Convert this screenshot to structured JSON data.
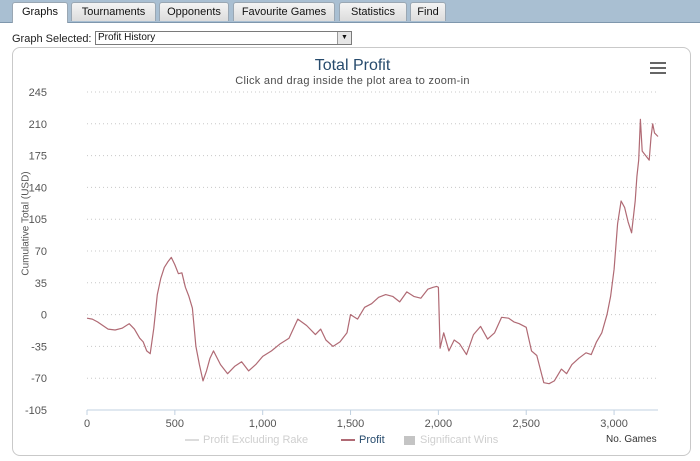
{
  "tabs": [
    {
      "label": "Graphs",
      "active": true
    },
    {
      "label": "Tournaments",
      "active": false
    },
    {
      "label": "Opponents",
      "active": false
    },
    {
      "label": "Favourite Games",
      "active": false
    },
    {
      "label": "Statistics",
      "active": false
    },
    {
      "label": "Find",
      "active": false
    }
  ],
  "graph_select": {
    "label": "Graph Selected:",
    "value": "Profit History",
    "arrow_icon": "triangle-down-icon"
  },
  "chart": {
    "menu_icon": "hamburger-menu-icon",
    "colors": {
      "title": "#274b6d",
      "profit": "#b06a74",
      "profit_excluding_rake": "#d9d9d9",
      "significant_wins": "#bbbbbb",
      "grid": "#c8c8c8"
    }
  },
  "chart_data": {
    "type": "line",
    "title": "Total Profit",
    "subtitle": "Click and drag inside the plot area to zoom-in",
    "xlabel": "No. Games",
    "ylabel": "Cumulative Total (USD)",
    "xlim": [
      0,
      3250
    ],
    "ylim": [
      -105,
      245
    ],
    "x_ticks": [
      0,
      500,
      1000,
      1500,
      2000,
      2500,
      3000
    ],
    "x_tick_labels": [
      "0",
      "500",
      "1,000",
      "1,500",
      "2,000",
      "2,500",
      "3,000"
    ],
    "y_ticks": [
      245,
      210,
      175,
      140,
      105,
      70,
      35,
      0,
      -35,
      -70,
      -105
    ],
    "y_tick_labels": [
      "245",
      "210",
      "175",
      "140",
      "105",
      "70",
      "35",
      "0",
      "-35",
      "-70",
      "-105"
    ],
    "grid": "horizontal dotted",
    "legend": {
      "position": "bottom",
      "items": [
        {
          "name": "Profit Excluding Rake",
          "kind": "line",
          "active": false
        },
        {
          "name": "Profit",
          "kind": "line",
          "active": true
        },
        {
          "name": "Significant Wins",
          "kind": "box",
          "active": false
        }
      ]
    },
    "series": [
      {
        "name": "Profit",
        "x": [
          0,
          30,
          60,
          90,
          120,
          160,
          200,
          240,
          270,
          300,
          320,
          340,
          360,
          380,
          400,
          420,
          440,
          460,
          480,
          500,
          520,
          540,
          560,
          580,
          600,
          620,
          640,
          660,
          680,
          700,
          720,
          760,
          800,
          840,
          880,
          920,
          960,
          1000,
          1050,
          1100,
          1150,
          1200,
          1250,
          1300,
          1330,
          1360,
          1400,
          1440,
          1480,
          1500,
          1540,
          1580,
          1620,
          1660,
          1700,
          1740,
          1780,
          1820,
          1860,
          1900,
          1940,
          1970,
          1990,
          2000,
          2010,
          2030,
          2060,
          2090,
          2120,
          2160,
          2200,
          2240,
          2280,
          2320,
          2360,
          2400,
          2430,
          2460,
          2500,
          2530,
          2560,
          2600,
          2630,
          2660,
          2700,
          2730,
          2760,
          2800,
          2840,
          2870,
          2900,
          2930,
          2960,
          2980,
          3000,
          3020,
          3040,
          3060,
          3080,
          3100,
          3120,
          3130,
          3140,
          3150,
          3160,
          3180,
          3200,
          3210,
          3220,
          3230,
          3250
        ],
        "values": [
          -4,
          -5,
          -8,
          -12,
          -16,
          -17,
          -15,
          -10,
          -16,
          -26,
          -30,
          -40,
          -43,
          -15,
          22,
          40,
          52,
          58,
          63,
          55,
          45,
          46,
          30,
          20,
          7,
          -35,
          -55,
          -73,
          -62,
          -48,
          -40,
          -55,
          -65,
          -57,
          -52,
          -62,
          -55,
          -46,
          -40,
          -32,
          -26,
          -5,
          -12,
          -22,
          -16,
          -28,
          -35,
          -30,
          -20,
          0,
          -5,
          8,
          12,
          19,
          22,
          20,
          14,
          25,
          20,
          18,
          28,
          30,
          31,
          30,
          -37,
          -20,
          -40,
          -28,
          -32,
          -44,
          -22,
          -13,
          -27,
          -20,
          -3,
          -4,
          -8,
          -10,
          -14,
          -40,
          -45,
          -75,
          -76,
          -73,
          -60,
          -65,
          -55,
          -48,
          -42,
          -44,
          -30,
          -20,
          0,
          20,
          50,
          100,
          125,
          118,
          102,
          90,
          125,
          152,
          170,
          215,
          180,
          175,
          170,
          195,
          210,
          200,
          196
        ]
      }
    ]
  }
}
